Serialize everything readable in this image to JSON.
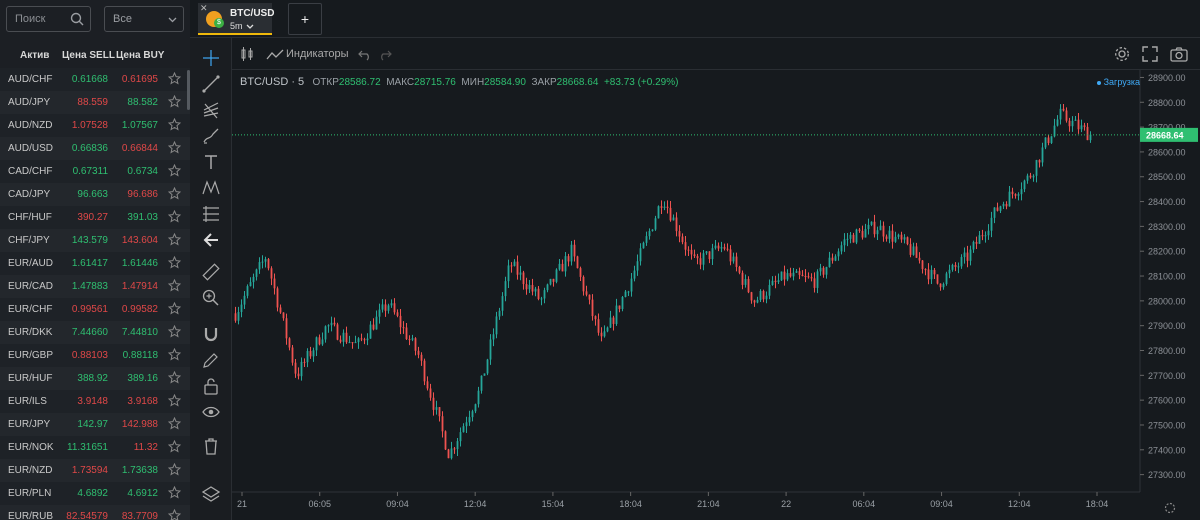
{
  "search": {
    "placeholder": "Поиск"
  },
  "filter": {
    "value": "Все"
  },
  "quotes": {
    "headers": {
      "asset": "Актив",
      "sell": "Цена SELL",
      "buy": "Цена BUY"
    },
    "rows": [
      {
        "symbol": "AUD/CHF",
        "sell": "0.61668",
        "buy": "0.61695",
        "sell_dir": "up",
        "buy_dir": "dn"
      },
      {
        "symbol": "AUD/JPY",
        "sell": "88.559",
        "buy": "88.582",
        "sell_dir": "dn",
        "buy_dir": "up"
      },
      {
        "symbol": "AUD/NZD",
        "sell": "1.07528",
        "buy": "1.07567",
        "sell_dir": "dn",
        "buy_dir": "up"
      },
      {
        "symbol": "AUD/USD",
        "sell": "0.66836",
        "buy": "0.66844",
        "sell_dir": "up",
        "buy_dir": "dn"
      },
      {
        "symbol": "CAD/CHF",
        "sell": "0.67311",
        "buy": "0.6734",
        "sell_dir": "up",
        "buy_dir": "up"
      },
      {
        "symbol": "CAD/JPY",
        "sell": "96.663",
        "buy": "96.686",
        "sell_dir": "up",
        "buy_dir": "dn"
      },
      {
        "symbol": "CHF/HUF",
        "sell": "390.27",
        "buy": "391.03",
        "sell_dir": "dn",
        "buy_dir": "up"
      },
      {
        "symbol": "CHF/JPY",
        "sell": "143.579",
        "buy": "143.604",
        "sell_dir": "up",
        "buy_dir": "dn"
      },
      {
        "symbol": "EUR/AUD",
        "sell": "1.61417",
        "buy": "1.61446",
        "sell_dir": "up",
        "buy_dir": "up"
      },
      {
        "symbol": "EUR/CAD",
        "sell": "1.47883",
        "buy": "1.47914",
        "sell_dir": "up",
        "buy_dir": "dn"
      },
      {
        "symbol": "EUR/CHF",
        "sell": "0.99561",
        "buy": "0.99582",
        "sell_dir": "dn",
        "buy_dir": "dn"
      },
      {
        "symbol": "EUR/DKK",
        "sell": "7.44660",
        "buy": "7.44810",
        "sell_dir": "up",
        "buy_dir": "up"
      },
      {
        "symbol": "EUR/GBP",
        "sell": "0.88103",
        "buy": "0.88118",
        "sell_dir": "dn",
        "buy_dir": "up"
      },
      {
        "symbol": "EUR/HUF",
        "sell": "388.92",
        "buy": "389.16",
        "sell_dir": "up",
        "buy_dir": "up"
      },
      {
        "symbol": "EUR/ILS",
        "sell": "3.9148",
        "buy": "3.9168",
        "sell_dir": "dn",
        "buy_dir": "dn"
      },
      {
        "symbol": "EUR/JPY",
        "sell": "142.97",
        "buy": "142.988",
        "sell_dir": "up",
        "buy_dir": "dn"
      },
      {
        "symbol": "EUR/NOK",
        "sell": "11.31651",
        "buy": "11.32",
        "sell_dir": "up",
        "buy_dir": "dn"
      },
      {
        "symbol": "EUR/NZD",
        "sell": "1.73594",
        "buy": "1.73638",
        "sell_dir": "dn",
        "buy_dir": "up"
      },
      {
        "symbol": "EUR/PLN",
        "sell": "4.6892",
        "buy": "4.6912",
        "sell_dir": "up",
        "buy_dir": "up"
      },
      {
        "symbol": "EUR/RUB",
        "sell": "82.54579",
        "buy": "83.7709",
        "sell_dir": "dn",
        "buy_dir": "dn"
      }
    ]
  },
  "tab": {
    "pair": "BTC/USD",
    "timeframe": "5m",
    "close": "✕",
    "add": "+"
  },
  "toolbar": {
    "indicators": "Индикаторы"
  },
  "legend": {
    "symbol": "BTC/USD · 5",
    "open_label": "ОТКР",
    "open": "28586.72",
    "high_label": "МАКС",
    "high": "28715.76",
    "low_label": "МИН",
    "low": "28584.90",
    "close_label": "ЗАКР",
    "close": "28668.64",
    "change": "+83.73 (+0.29%)"
  },
  "status": {
    "loading": "Загрузка"
  },
  "colors": {
    "up": "#26a69a",
    "down": "#ef5350",
    "price_tag": "#2fbf71"
  },
  "chart_data": {
    "type": "candlestick",
    "title": "BTC/USD",
    "timeframe": "5",
    "ylim": [
      27230,
      28930
    ],
    "y_ticks": [
      27300,
      27400,
      27500,
      27600,
      27700,
      27800,
      27900,
      28000,
      28100,
      28200,
      28300,
      28400,
      28500,
      28600,
      28700,
      28800,
      28900
    ],
    "x_ticks": [
      "21",
      "06:05",
      "09:04",
      "12:04",
      "15:04",
      "18:04",
      "21:04",
      "22",
      "06:04",
      "09:04",
      "12:04",
      "18:04"
    ],
    "last_price": 28668.64,
    "price_path_approx": [
      {
        "time": "21",
        "price": 27950
      },
      {
        "time": "21",
        "price": 28180
      },
      {
        "time": "06:05",
        "price": 27700
      },
      {
        "time": "06:05",
        "price": 27900
      },
      {
        "time": "06:05",
        "price": 27820
      },
      {
        "time": "09:04",
        "price": 27990
      },
      {
        "time": "09:04",
        "price": 27780
      },
      {
        "time": "09:04",
        "price": 27380
      },
      {
        "time": "12:04",
        "price": 27640
      },
      {
        "time": "12:04",
        "price": 28150
      },
      {
        "time": "15:04",
        "price": 28000
      },
      {
        "time": "15:04",
        "price": 28200
      },
      {
        "time": "18:04",
        "price": 27830
      },
      {
        "time": "18:04",
        "price": 28100
      },
      {
        "time": "18:04",
        "price": 28420
      },
      {
        "time": "21:04",
        "price": 28150
      },
      {
        "time": "21:04",
        "price": 28220
      },
      {
        "time": "22",
        "price": 28000
      },
      {
        "time": "22",
        "price": 28100
      },
      {
        "time": "06:04",
        "price": 28080
      },
      {
        "time": "06:04",
        "price": 28250
      },
      {
        "time": "09:04",
        "price": 28300
      },
      {
        "time": "09:04",
        "price": 28220
      },
      {
        "time": "12:04",
        "price": 28070
      },
      {
        "time": "12:04",
        "price": 28180
      },
      {
        "time": "12:04",
        "price": 28380
      },
      {
        "time": "18:04",
        "price": 28500
      },
      {
        "time": "18:04",
        "price": 28750
      },
      {
        "time": "18:04",
        "price": 28668.64
      }
    ]
  }
}
